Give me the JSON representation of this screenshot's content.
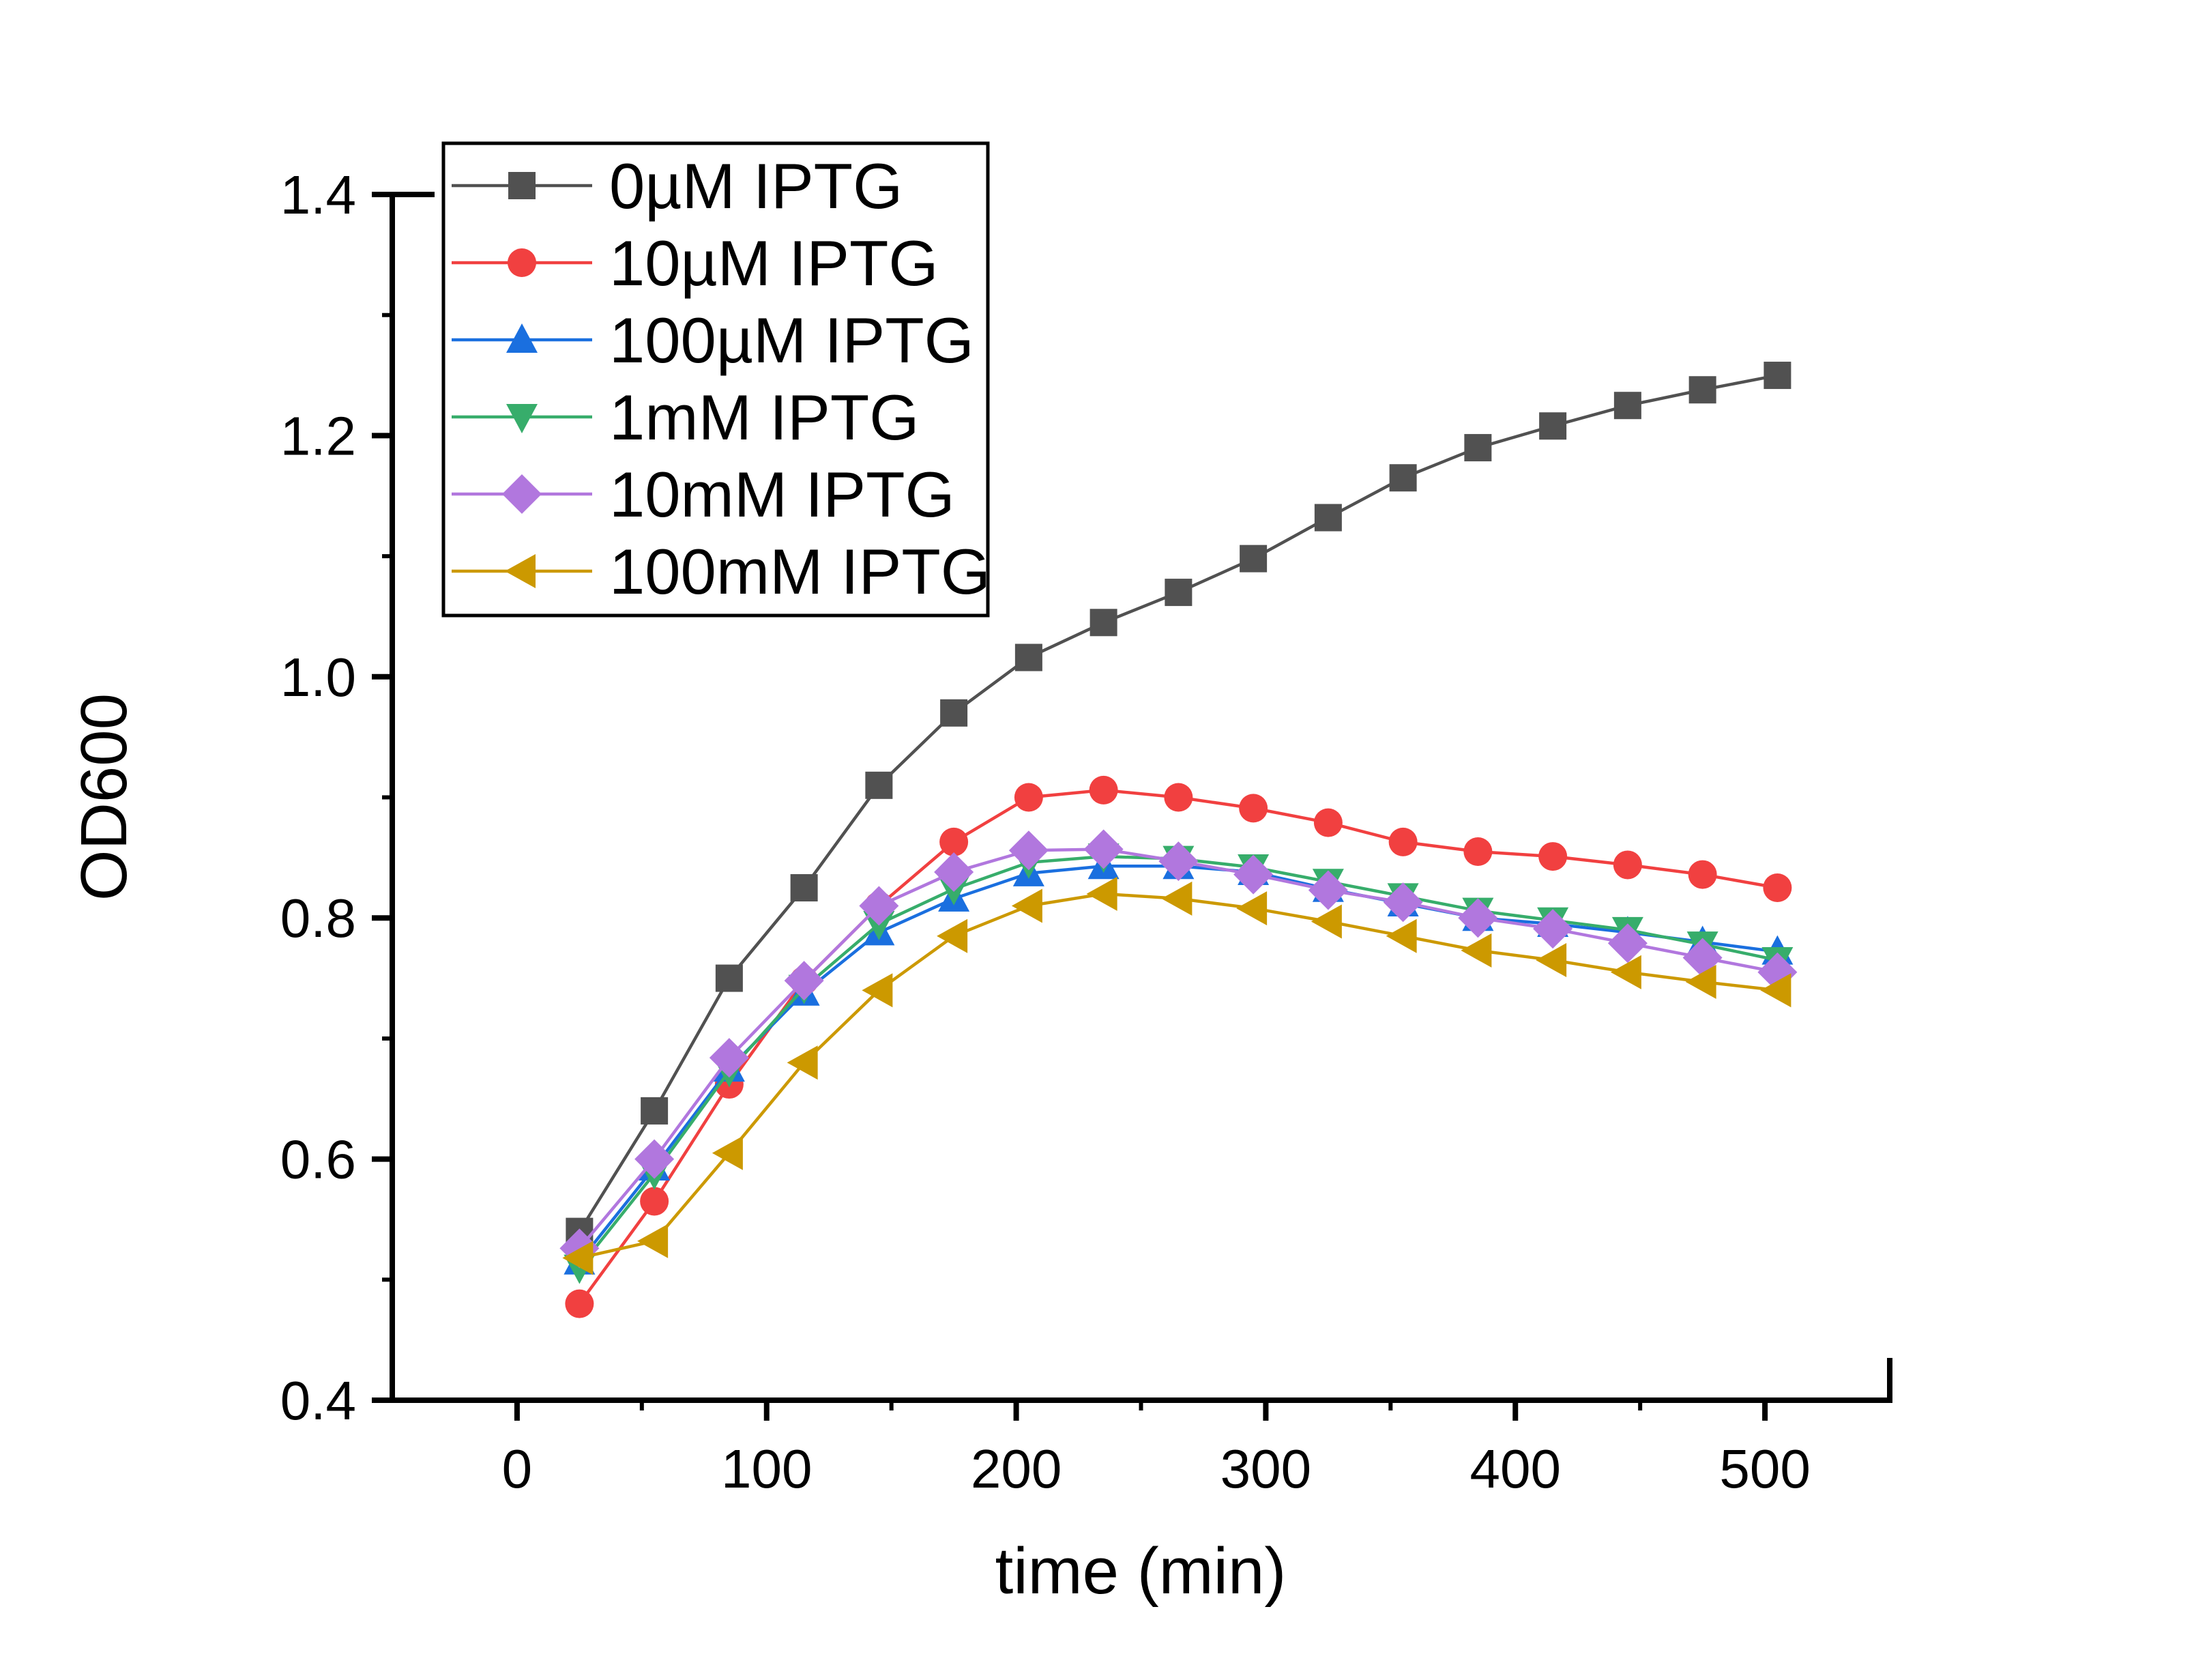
{
  "chart_data": {
    "type": "line",
    "title": "",
    "xlabel": "time (min)",
    "ylabel": "OD600",
    "xlim": [
      -50,
      550
    ],
    "ylim": [
      0.4,
      1.4
    ],
    "grid": false,
    "legend_position": "top-left-inside",
    "x_major_ticks": [
      0,
      100,
      200,
      300,
      400,
      500
    ],
    "x_minor_ticks": [
      50,
      150,
      250,
      350,
      450
    ],
    "y_major_ticks": [
      0.4,
      0.6,
      0.8,
      1.0,
      1.2,
      1.4
    ],
    "y_minor_ticks": [
      0.5,
      0.7,
      0.9,
      1.1,
      1.3
    ],
    "x": [
      25,
      55,
      85,
      115,
      145,
      175,
      205,
      235,
      265,
      295,
      325,
      355,
      385,
      415,
      445,
      475,
      505
    ],
    "series": [
      {
        "name": "0µM IPTG",
        "marker": "square",
        "color": "#515151",
        "values": [
          0.54,
          0.64,
          0.75,
          0.825,
          0.91,
          0.97,
          1.016,
          1.045,
          1.07,
          1.098,
          1.132,
          1.165,
          1.19,
          1.208,
          1.225,
          1.238,
          1.25
        ]
      },
      {
        "name": "10µM IPTG",
        "marker": "circle",
        "color": "#F14040",
        "values": [
          0.48,
          0.565,
          0.662,
          0.748,
          0.81,
          0.863,
          0.9,
          0.906,
          0.9,
          0.891,
          0.879,
          0.863,
          0.855,
          0.851,
          0.844,
          0.836,
          0.825
        ]
      },
      {
        "name": "100µM IPTG",
        "marker": "triangle-up",
        "color": "#1A6FDF",
        "values": [
          0.515,
          0.593,
          0.675,
          0.738,
          0.788,
          0.816,
          0.837,
          0.843,
          0.843,
          0.838,
          0.824,
          0.812,
          0.8,
          0.795,
          0.788,
          0.78,
          0.772
        ]
      },
      {
        "name": "1mM IPTG",
        "marker": "triangle-down",
        "color": "#37AD6B",
        "values": [
          0.51,
          0.588,
          0.673,
          0.742,
          0.795,
          0.824,
          0.846,
          0.851,
          0.849,
          0.842,
          0.83,
          0.818,
          0.806,
          0.798,
          0.79,
          0.778,
          0.765
        ]
      },
      {
        "name": "10mM IPTG",
        "marker": "diamond",
        "color": "#B177DE",
        "values": [
          0.526,
          0.6,
          0.684,
          0.748,
          0.81,
          0.838,
          0.856,
          0.857,
          0.847,
          0.836,
          0.823,
          0.813,
          0.8,
          0.791,
          0.779,
          0.767,
          0.755
        ]
      },
      {
        "name": "100mM IPTG",
        "marker": "triangle-left",
        "color": "#CC9900",
        "values": [
          0.518,
          0.532,
          0.605,
          0.68,
          0.74,
          0.785,
          0.81,
          0.82,
          0.816,
          0.808,
          0.797,
          0.785,
          0.773,
          0.765,
          0.755,
          0.747,
          0.74
        ]
      }
    ]
  }
}
